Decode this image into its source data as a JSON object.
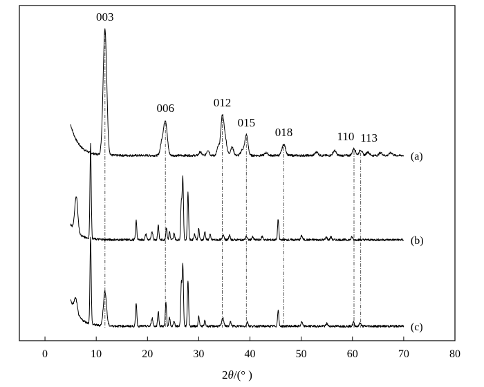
{
  "chart_data": {
    "type": "line",
    "title": "",
    "xlabel_parts": [
      "2",
      "θ",
      "/(° )"
    ],
    "ylabel": "",
    "xlim": [
      -5,
      80
    ],
    "xticks": [
      0,
      10,
      20,
      30,
      40,
      50,
      60,
      70,
      80
    ],
    "yticks": [],
    "grid": false,
    "reflections": [
      {
        "label": "003",
        "x": 11.7
      },
      {
        "label": "006",
        "x": 23.5
      },
      {
        "label": "012",
        "x": 34.6
      },
      {
        "label": "015",
        "x": 39.3
      },
      {
        "label": "018",
        "x": 46.6
      },
      {
        "label": "110",
        "x": 60.3
      },
      {
        "label": "113",
        "x": 61.6
      }
    ],
    "series": [
      {
        "name": "(a)",
        "baseline": 225,
        "x_range": [
          5,
          70
        ],
        "start_rise": 45,
        "peaks": [
          [
            11.7,
            183,
            0.35
          ],
          [
            23.5,
            50,
            0.35
          ],
          [
            22.8,
            18,
            0.3
          ],
          [
            34.6,
            56,
            0.3
          ],
          [
            35.2,
            22,
            0.3
          ],
          [
            33.8,
            12,
            0.25
          ],
          [
            36.5,
            12,
            0.3
          ],
          [
            39.3,
            30,
            0.3
          ],
          [
            38.5,
            8,
            0.3
          ],
          [
            46.6,
            16,
            0.35
          ],
          [
            31.8,
            8,
            0.25
          ],
          [
            30.3,
            5,
            0.25
          ],
          [
            43.2,
            4,
            0.3
          ],
          [
            53.0,
            5,
            0.3
          ],
          [
            56.5,
            7,
            0.3
          ],
          [
            60.3,
            10,
            0.3
          ],
          [
            61.6,
            8,
            0.3
          ],
          [
            63.0,
            5,
            0.3
          ],
          [
            65.5,
            4,
            0.3
          ],
          [
            67.5,
            4,
            0.3
          ]
        ]
      },
      {
        "name": "(b)",
        "baseline": 347,
        "x_range": [
          5,
          70
        ],
        "start_rise": 22,
        "peaks": [
          [
            6.1,
            52,
            0.3
          ],
          [
            8.9,
            137,
            0.12
          ],
          [
            17.8,
            28,
            0.12
          ],
          [
            19.7,
            8,
            0.15
          ],
          [
            20.9,
            12,
            0.15
          ],
          [
            22.1,
            22,
            0.12
          ],
          [
            23.7,
            18,
            0.12
          ],
          [
            24.3,
            12,
            0.12
          ],
          [
            25.2,
            10,
            0.12
          ],
          [
            26.6,
            55,
            0.12
          ],
          [
            26.9,
            90,
            0.12
          ],
          [
            27.9,
            68,
            0.12
          ],
          [
            29.2,
            8,
            0.15
          ],
          [
            30.0,
            16,
            0.12
          ],
          [
            31.2,
            12,
            0.12
          ],
          [
            32.2,
            8,
            0.12
          ],
          [
            34.8,
            8,
            0.15
          ],
          [
            36.0,
            6,
            0.15
          ],
          [
            39.3,
            5,
            0.15
          ],
          [
            40.5,
            4,
            0.15
          ],
          [
            42.4,
            5,
            0.15
          ],
          [
            45.5,
            30,
            0.12
          ],
          [
            50.1,
            6,
            0.15
          ],
          [
            54.9,
            4,
            0.15
          ],
          [
            55.8,
            4,
            0.15
          ],
          [
            59.9,
            4,
            0.15
          ]
        ]
      },
      {
        "name": "(c)",
        "baseline": 472,
        "x_range": [
          5,
          70
        ],
        "start_rise": 38,
        "peaks": [
          [
            6.0,
            20,
            0.3
          ],
          [
            8.9,
            125,
            0.12
          ],
          [
            11.7,
            50,
            0.3
          ],
          [
            17.8,
            34,
            0.12
          ],
          [
            20.9,
            12,
            0.15
          ],
          [
            22.1,
            22,
            0.12
          ],
          [
            23.6,
            34,
            0.12
          ],
          [
            24.3,
            12,
            0.12
          ],
          [
            25.2,
            8,
            0.12
          ],
          [
            26.6,
            60,
            0.12
          ],
          [
            26.9,
            88,
            0.12
          ],
          [
            27.9,
            66,
            0.12
          ],
          [
            30.0,
            14,
            0.12
          ],
          [
            31.2,
            8,
            0.12
          ],
          [
            34.7,
            12,
            0.2
          ],
          [
            36.2,
            6,
            0.15
          ],
          [
            39.5,
            6,
            0.15
          ],
          [
            45.5,
            24,
            0.12
          ],
          [
            50.1,
            6,
            0.15
          ],
          [
            55.0,
            4,
            0.15
          ],
          [
            60.2,
            6,
            0.15
          ],
          [
            61.5,
            5,
            0.15
          ]
        ]
      }
    ]
  }
}
